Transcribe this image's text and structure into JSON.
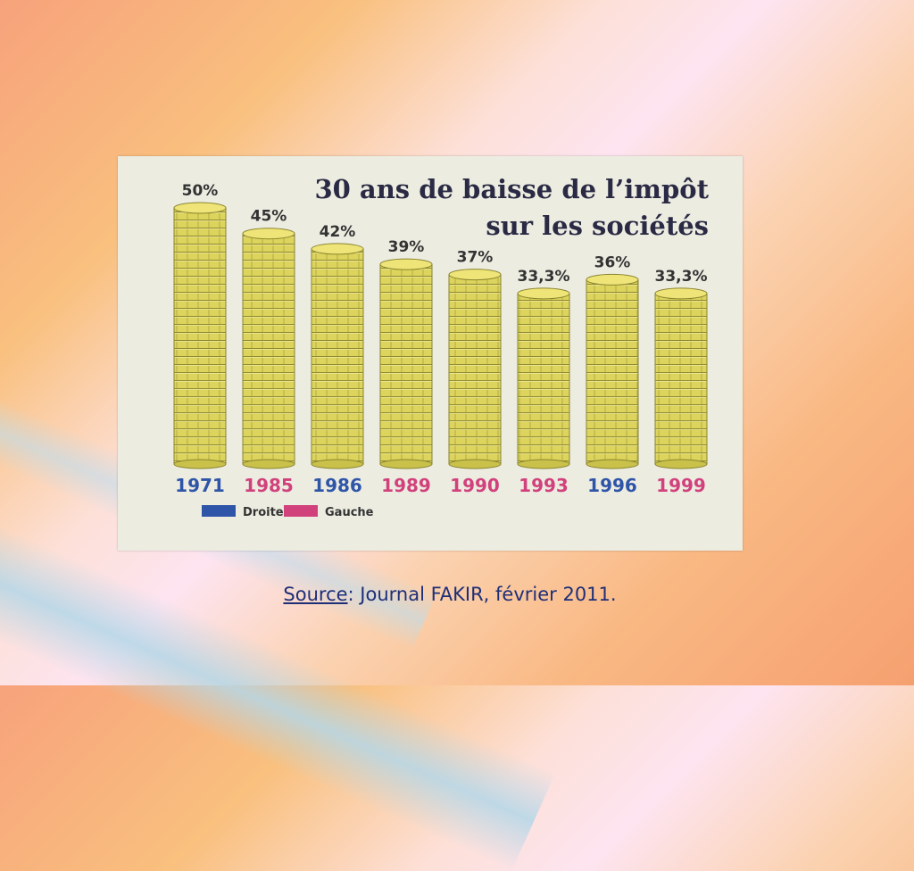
{
  "chart_data": {
    "type": "bar",
    "title": "30 ans de baisse de l’impôt",
    "subtitle": "sur les sociétés",
    "categories": [
      "1971",
      "1985",
      "1986",
      "1989",
      "1990",
      "1993",
      "1996",
      "1999"
    ],
    "values": [
      50,
      45,
      42,
      39,
      37,
      33.3,
      36,
      33.3
    ],
    "value_labels": [
      "50%",
      "45%",
      "42%",
      "39%",
      "37%",
      "33,3%",
      "36%",
      "33,3%"
    ],
    "category_groups": [
      "Droite",
      "Gauche",
      "Droite",
      "Gauche",
      "Gauche",
      "Gauche",
      "Droite",
      "Gauche"
    ],
    "legend": [
      {
        "name": "Droite",
        "color": "#2f55a8"
      },
      {
        "name": "Gauche",
        "color": "#d1417c"
      }
    ],
    "legend_position": "bottom-left",
    "grid": false,
    "bar_color": "#d9d35a",
    "xlabel": "",
    "ylabel": ""
  },
  "caption": {
    "source_label": "Source",
    "source_text": ": Journal FAKIR, février 2011."
  }
}
